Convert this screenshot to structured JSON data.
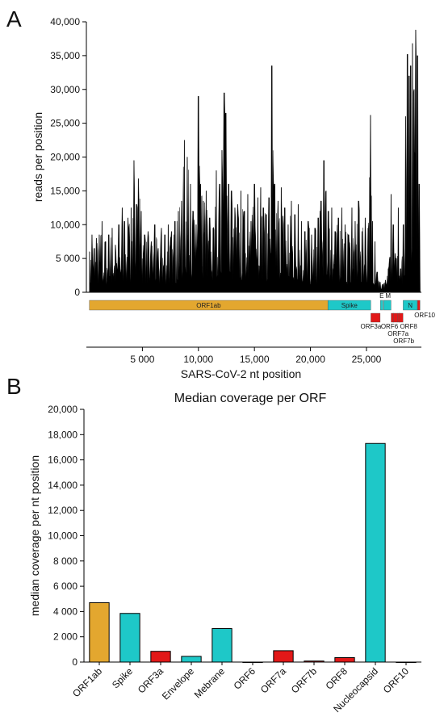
{
  "panel_labels": {
    "a": "A",
    "b": "B"
  },
  "colors": {
    "orf1ab": "#e3a72f",
    "structural": "#1ec8c8",
    "accessory": "#e21818",
    "coverage": "#000000",
    "axis": "#000000"
  },
  "chart_data": [
    {
      "type": "area",
      "title": "",
      "xlabel": "SARS-CoV-2 nt position",
      "ylabel": "reads per position",
      "xlim": [
        0,
        29903
      ],
      "ylim": [
        0,
        40000
      ],
      "x_ticks": [
        {
          "v": 5000,
          "label": "5 000"
        },
        {
          "v": 10000,
          "label": "10,000"
        },
        {
          "v": 15000,
          "label": "15,000"
        },
        {
          "v": 20000,
          "label": "20,000"
        },
        {
          "v": 25000,
          "label": "25,000"
        }
      ],
      "y_ticks": [
        {
          "v": 0,
          "label": "0"
        },
        {
          "v": 5000,
          "label": "5 000"
        },
        {
          "v": 10000,
          "label": "10,000"
        },
        {
          "v": 15000,
          "label": "15,000"
        },
        {
          "v": 20000,
          "label": "20,000"
        },
        {
          "v": 25000,
          "label": "25,000"
        },
        {
          "v": 30000,
          "label": "30,000"
        },
        {
          "v": 35000,
          "label": "35,000"
        },
        {
          "v": 40000,
          "label": "40,000"
        }
      ],
      "peaks": [
        [
          266,
          6000
        ],
        [
          500,
          8500
        ],
        [
          700,
          6500
        ],
        [
          900,
          8000
        ],
        [
          1150,
          8500
        ],
        [
          1400,
          10500
        ],
        [
          1700,
          7500
        ],
        [
          2000,
          8500
        ],
        [
          2300,
          9500
        ],
        [
          2600,
          7000
        ],
        [
          2900,
          10000
        ],
        [
          3200,
          12500
        ],
        [
          3400,
          10500
        ],
        [
          3700,
          11000
        ],
        [
          4000,
          12500
        ],
        [
          4250,
          19500
        ],
        [
          4500,
          13000
        ],
        [
          4650,
          16800
        ],
        [
          4900,
          12000
        ],
        [
          5200,
          8500
        ],
        [
          5500,
          9000
        ],
        [
          5800,
          7500
        ],
        [
          6100,
          10000
        ],
        [
          6400,
          6500
        ],
        [
          6700,
          9500
        ],
        [
          7000,
          8500
        ],
        [
          7300,
          10000
        ],
        [
          7600,
          9000
        ],
        [
          7900,
          10500
        ],
        [
          8200,
          12000
        ],
        [
          8500,
          13500
        ],
        [
          8750,
          22500
        ],
        [
          9000,
          20000
        ],
        [
          9300,
          16000
        ],
        [
          9550,
          12000
        ],
        [
          9800,
          10000
        ],
        [
          10000,
          29000
        ],
        [
          10200,
          16000
        ],
        [
          10450,
          13500
        ],
        [
          10700,
          15000
        ],
        [
          11000,
          11000
        ],
        [
          11300,
          9500
        ],
        [
          11600,
          18000
        ],
        [
          11900,
          16000
        ],
        [
          12100,
          21000
        ],
        [
          12300,
          29500
        ],
        [
          12450,
          26500
        ],
        [
          12700,
          16000
        ],
        [
          12950,
          15000
        ],
        [
          13250,
          12500
        ],
        [
          13500,
          13000
        ],
        [
          13800,
          15000
        ],
        [
          14100,
          12000
        ],
        [
          14400,
          14500
        ],
        [
          14700,
          10500
        ],
        [
          15000,
          16000
        ],
        [
          15300,
          14000
        ],
        [
          15550,
          15500
        ],
        [
          15800,
          12500
        ],
        [
          16050,
          11500
        ],
        [
          16300,
          14000
        ],
        [
          16550,
          33500
        ],
        [
          16800,
          16000
        ],
        [
          17100,
          13500
        ],
        [
          17400,
          15500
        ],
        [
          17700,
          12500
        ],
        [
          18000,
          10000
        ],
        [
          18300,
          13500
        ],
        [
          18600,
          11500
        ],
        [
          18900,
          13000
        ],
        [
          19200,
          10500
        ],
        [
          19500,
          9000
        ],
        [
          19800,
          10500
        ],
        [
          20100,
          8500
        ],
        [
          20400,
          9500
        ],
        [
          20700,
          11000
        ],
        [
          20950,
          13500
        ],
        [
          21200,
          19500
        ],
        [
          21400,
          15000
        ],
        [
          21600,
          12000
        ],
        [
          21900,
          12500
        ],
        [
          22200,
          9000
        ],
        [
          22500,
          11000
        ],
        [
          22800,
          12500
        ],
        [
          23100,
          10000
        ],
        [
          23400,
          8500
        ],
        [
          23700,
          12500
        ],
        [
          24000,
          10500
        ],
        [
          24300,
          13500
        ],
        [
          24600,
          9000
        ],
        [
          24900,
          11000
        ],
        [
          25150,
          9500
        ],
        [
          25350,
          26200
        ],
        [
          25550,
          10500
        ],
        [
          25750,
          7500
        ],
        [
          25950,
          3000
        ],
        [
          26200,
          1500
        ],
        [
          26450,
          1200
        ],
        [
          26700,
          1800
        ],
        [
          26950,
          3500
        ],
        [
          27200,
          14500
        ],
        [
          27400,
          10000
        ],
        [
          27650,
          5000
        ],
        [
          27850,
          12500
        ],
        [
          28050,
          3500
        ],
        [
          28300,
          10000
        ],
        [
          28500,
          26000
        ],
        [
          28650,
          35200
        ],
        [
          28800,
          32000
        ],
        [
          28950,
          33500
        ],
        [
          29100,
          36800
        ],
        [
          29250,
          30000
        ],
        [
          29400,
          38800
        ],
        [
          29550,
          35000
        ],
        [
          29700,
          16000
        ],
        [
          29800,
          6500
        ]
      ],
      "genome_track": [
        {
          "name": "ORF1ab",
          "start": 266,
          "end": 21555,
          "kind": "orf1ab",
          "row": 0,
          "label_inside": true
        },
        {
          "name": "Spike",
          "start": 21563,
          "end": 25384,
          "kind": "structural",
          "row": 0,
          "label_inside": true
        },
        {
          "name": "E",
          "start": 26245,
          "end": 26472,
          "kind": "structural",
          "row": 0,
          "label_inside": false
        },
        {
          "name": "M",
          "start": 26523,
          "end": 27191,
          "kind": "structural",
          "row": 0,
          "label_inside": false
        },
        {
          "name": "N",
          "start": 28274,
          "end": 29533,
          "kind": "structural",
          "row": 0,
          "label_inside": true
        },
        {
          "name": "ORF10",
          "start": 29558,
          "end": 29674,
          "kind": "accessory",
          "row": 0,
          "label_inside": false
        },
        {
          "name": "ORF3a",
          "start": 25393,
          "end": 26220,
          "kind": "accessory",
          "row": 1,
          "label_inside": false
        },
        {
          "name": "ORF6",
          "start": 27202,
          "end": 27387,
          "kind": "accessory",
          "row": 1,
          "label_inside": false
        },
        {
          "name": "ORF7a",
          "start": 27394,
          "end": 27759,
          "kind": "accessory",
          "row": 1,
          "label_inside": false
        },
        {
          "name": "ORF7b",
          "start": 27756,
          "end": 27887,
          "kind": "accessory",
          "row": 1,
          "label_inside": false
        },
        {
          "name": "ORF8",
          "start": 27894,
          "end": 28259,
          "kind": "accessory",
          "row": 1,
          "label_inside": false
        }
      ]
    },
    {
      "type": "bar",
      "title": "Median coverage per ORF",
      "xlabel": "",
      "ylabel": "median coverage per nt position",
      "ylim": [
        0,
        20000
      ],
      "y_ticks": [
        {
          "v": 0,
          "label": "0"
        },
        {
          "v": 2000,
          "label": "2 000"
        },
        {
          "v": 4000,
          "label": "4 000"
        },
        {
          "v": 6000,
          "label": "6 000"
        },
        {
          "v": 8000,
          "label": "8 000"
        },
        {
          "v": 10000,
          "label": "10,000"
        },
        {
          "v": 12000,
          "label": "12,000"
        },
        {
          "v": 14000,
          "label": "14,000"
        },
        {
          "v": 16000,
          "label": "16,000"
        },
        {
          "v": 18000,
          "label": "18,000"
        },
        {
          "v": 20000,
          "label": "20,000"
        }
      ],
      "categories": [
        "ORF1ab",
        "Spike",
        "ORF3a",
        "Envelope",
        "Mebrane",
        "ORF6",
        "ORF7a",
        "ORF7b",
        "ORF8",
        "Nucleocapsid",
        "ORF10"
      ],
      "values": [
        4700,
        3850,
        850,
        450,
        2650,
        0,
        900,
        80,
        350,
        17300,
        0
      ],
      "bar_kinds": [
        "orf1ab",
        "structural",
        "accessory",
        "structural",
        "structural",
        "accessory",
        "accessory",
        "accessory",
        "accessory",
        "structural",
        "accessory"
      ]
    }
  ]
}
